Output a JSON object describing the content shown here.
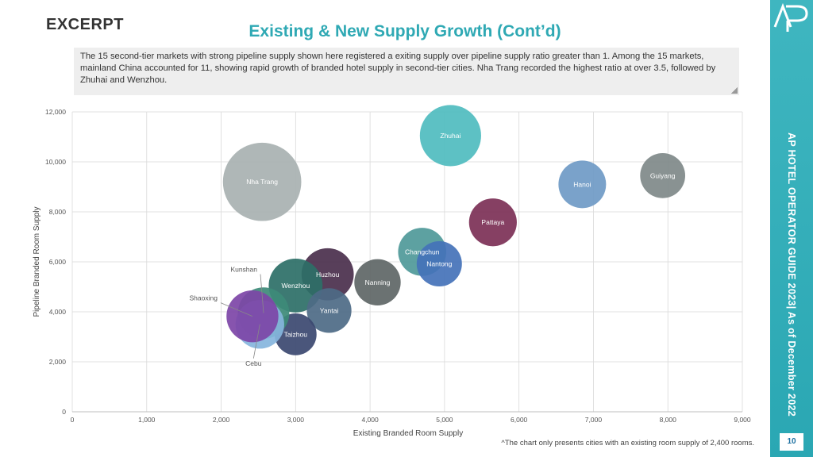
{
  "header": {
    "excerpt": "EXCERPT",
    "title": "Existing & New Supply Growth (Cont’d)",
    "summary": "The 15 second-tier markets with strong pipeline supply shown here registered a exiting supply over pipeline supply ratio greater than 1. Among the 15 markets, mainland China accounted for 11, showing rapid growth of branded hotel supply in second-tier cities. Nha Trang recorded the highest ratio at over 3.5, followed by Zhuhai and Wenzhou."
  },
  "sidebar": {
    "vertical_text": "AP HOTEL OPERATOR GUIDE 2023| As of December 2022",
    "page_number": "10",
    "logo": "AP-logo",
    "color": "#3bb3bd"
  },
  "footnote": "^The chart only presents cities with an existing room supply of 2,400 rooms.",
  "chart_data": {
    "type": "scatter",
    "subtype": "bubble",
    "xlabel": "Existing Branded Room Supply",
    "ylabel": "Pipeline Branded Room Supply",
    "xlim": [
      0,
      9000
    ],
    "ylim": [
      0,
      12000
    ],
    "x_ticks": [
      "0",
      "1,000",
      "2,000",
      "3,000",
      "4,000",
      "5,000",
      "6,000",
      "7,000",
      "8,000",
      "9,000"
    ],
    "y_ticks": [
      "0",
      "2,000",
      "4,000",
      "6,000",
      "8,000",
      "10,000",
      "12,000"
    ],
    "grid": true,
    "legend": "none",
    "points": [
      {
        "label": "Zhuhai",
        "x": 5080,
        "y": 11050,
        "ratio": 2.2,
        "color": "#4fbcbf",
        "label_pos": "inside"
      },
      {
        "label": "Nha Trang",
        "x": 2550,
        "y": 9200,
        "ratio": 3.6,
        "color": "#a8b1b1",
        "label_pos": "inside"
      },
      {
        "label": "Hanoi",
        "x": 6850,
        "y": 9100,
        "ratio": 1.33,
        "color": "#6f9ac6",
        "label_pos": "inside"
      },
      {
        "label": "Guiyang",
        "x": 7930,
        "y": 9450,
        "ratio": 1.19,
        "color": "#7f8989",
        "label_pos": "inside"
      },
      {
        "label": "Pattaya",
        "x": 5650,
        "y": 7580,
        "ratio": 1.34,
        "color": "#7c3056",
        "label_pos": "inside"
      },
      {
        "label": "Changchun",
        "x": 4700,
        "y": 6400,
        "ratio": 1.36,
        "color": "#4f9999",
        "label_pos": "inside"
      },
      {
        "label": "Nantong",
        "x": 4930,
        "y": 5920,
        "ratio": 1.2,
        "color": "#4472b8",
        "label_pos": "inside"
      },
      {
        "label": "Nanning",
        "x": 4100,
        "y": 5180,
        "ratio": 1.26,
        "color": "#5e6666",
        "label_pos": "inside"
      },
      {
        "label": "Huzhou",
        "x": 3430,
        "y": 5500,
        "ratio": 1.6,
        "color": "#4a2f4c",
        "label_pos": "inside"
      },
      {
        "label": "Wenzhou",
        "x": 3000,
        "y": 5050,
        "ratio": 1.7,
        "color": "#2c6f67",
        "label_pos": "inside"
      },
      {
        "label": "Yantai",
        "x": 3450,
        "y": 4050,
        "ratio": 1.17,
        "color": "#4d6a85",
        "label_pos": "inside"
      },
      {
        "label": "Taizhou",
        "x": 3000,
        "y": 3100,
        "ratio": 1.03,
        "color": "#3b4870",
        "label_pos": "inside"
      },
      {
        "label": "Kunshan",
        "x": 2570,
        "y": 3950,
        "ratio": 1.55,
        "color": "#3d8a78",
        "label_pos": "callout"
      },
      {
        "label": "Cebu",
        "x": 2520,
        "y": 3500,
        "ratio": 1.39,
        "color": "#85b5dd",
        "label_pos": "callout"
      },
      {
        "label": "Shaoxing",
        "x": 2420,
        "y": 3820,
        "ratio": 1.58,
        "color": "#7d45a7",
        "label_pos": "callout"
      }
    ]
  }
}
